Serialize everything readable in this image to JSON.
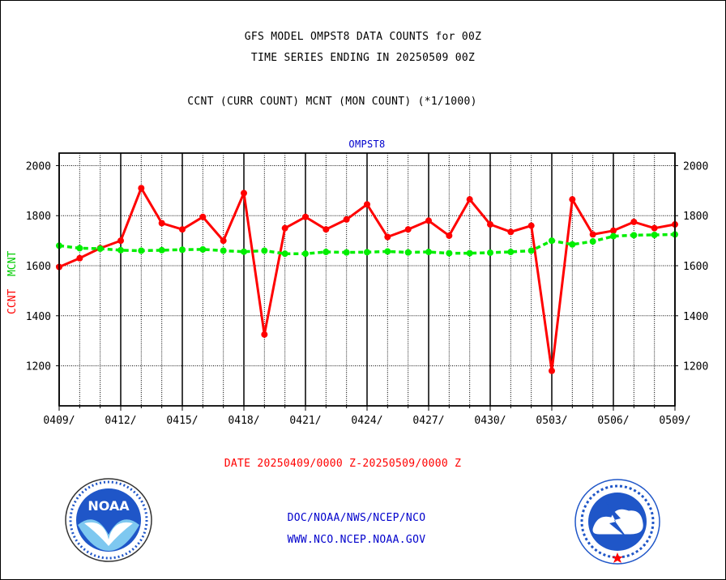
{
  "chart_data": {
    "type": "line",
    "title": "GFS MODEL OMPST8 DATA COUNTS for 00Z",
    "subtitle": "TIME SERIES ENDING IN 20250509 00Z",
    "subtitle2": "CCNT (CURR COUNT) MCNT (MON COUNT) (*1/1000)",
    "panel_label": "OMPST8",
    "ylabel_ccnt": "CCNT",
    "ylabel_mcnt": "MCNT",
    "xlabel": "DATE 20250409/0000 Z-20250509/0000 Z",
    "x_ticks": [
      "0409/",
      "0412/",
      "0415/",
      "0418/",
      "0421/",
      "0424/",
      "0427/",
      "0430/",
      "0503/",
      "0506/",
      "0509/"
    ],
    "y_ticks": [
      1200,
      1400,
      1600,
      1800,
      2000
    ],
    "xlim": [
      0,
      30
    ],
    "ylim": [
      1040,
      2050
    ],
    "grid": true,
    "series": [
      {
        "name": "CCNT",
        "color": "#ff0000",
        "values": [
          1595,
          1630,
          1670,
          1700,
          1910,
          1770,
          1745,
          1795,
          1700,
          1890,
          1325,
          1750,
          1795,
          1745,
          1785,
          1845,
          1715,
          1745,
          1780,
          1720,
          1865,
          1765,
          1735,
          1760,
          1180,
          1865,
          1725,
          1740,
          1775,
          1750,
          1765
        ]
      },
      {
        "name": "MCNT",
        "color": "#00ee00",
        "values": [
          1680,
          1670,
          1668,
          1662,
          1660,
          1662,
          1664,
          1665,
          1660,
          1656,
          1660,
          1648,
          1648,
          1655,
          1653,
          1654,
          1657,
          1653,
          1655,
          1650,
          1650,
          1652,
          1655,
          1660,
          1700,
          1685,
          1697,
          1718,
          1722,
          1723,
          1725
        ]
      }
    ]
  },
  "footer": {
    "link1": "DOC/NOAA/NWS/NCEP/NCO",
    "link2": "WWW.NCO.NCEP.NOAA.GOV"
  },
  "logos": {
    "left": "noaa-logo",
    "left_text": "NOAA",
    "right": "nws-logo"
  }
}
